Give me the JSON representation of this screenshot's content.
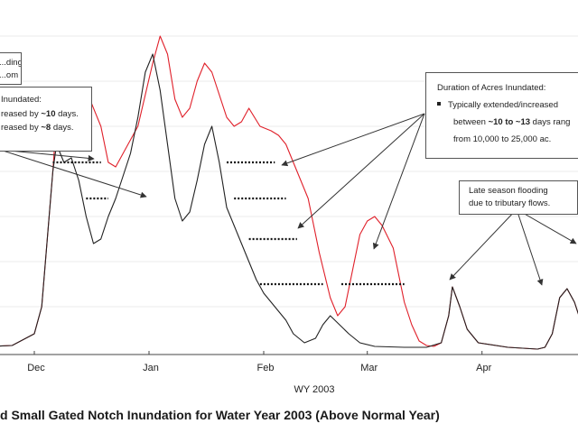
{
  "chart_data": {
    "type": "line",
    "xlabel": "WY 2003",
    "x_ticks": [
      "Dec",
      "Jan",
      "Feb",
      "Mar",
      "Apr"
    ],
    "caption": "d Small Gated Notch Inundation for Water Year 2003 (Above Normal Year)",
    "grid": true,
    "x_unit": "day index (Nov 1 = 0)",
    "series": [
      {
        "name": "",
        "color": "#e0202a",
        "points": [
          [
            0,
            0.05
          ],
          [
            12,
            0.05
          ],
          [
            24,
            0.07
          ],
          [
            30,
            0.2
          ],
          [
            32,
            0.5
          ],
          [
            35,
            2.0
          ],
          [
            36,
            2.6
          ],
          [
            40,
            2.75
          ],
          [
            44,
            2.9
          ],
          [
            48,
            2.5
          ],
          [
            50,
            2.1
          ],
          [
            52,
            2.05
          ],
          [
            54,
            2.2
          ],
          [
            58,
            2.5
          ],
          [
            62,
            3.2
          ],
          [
            64,
            3.5
          ],
          [
            66,
            3.3
          ],
          [
            68,
            2.8
          ],
          [
            70,
            2.6
          ],
          [
            72,
            2.7
          ],
          [
            74,
            3.0
          ],
          [
            76,
            3.2
          ],
          [
            78,
            3.1
          ],
          [
            82,
            2.6
          ],
          [
            84,
            2.5
          ],
          [
            86,
            2.55
          ],
          [
            88,
            2.7
          ],
          [
            91,
            2.5
          ],
          [
            94,
            2.45
          ],
          [
            96,
            2.4
          ],
          [
            98,
            2.3
          ],
          [
            100,
            2.1
          ],
          [
            104,
            1.7
          ],
          [
            107,
            1.1
          ],
          [
            110,
            0.6
          ],
          [
            112,
            0.4
          ],
          [
            114,
            0.5
          ],
          [
            116,
            0.9
          ],
          [
            118,
            1.3
          ],
          [
            120,
            1.45
          ],
          [
            122,
            1.5
          ],
          [
            124,
            1.4
          ],
          [
            127,
            1.15
          ],
          [
            130,
            0.55
          ],
          [
            132,
            0.3
          ],
          [
            134,
            0.12
          ],
          [
            136,
            0.07
          ],
          [
            138,
            0.06
          ],
          [
            140,
            0.1
          ],
          [
            142,
            0.4
          ],
          [
            143,
            0.72
          ],
          [
            145,
            0.5
          ],
          [
            147,
            0.25
          ],
          [
            150,
            0.1
          ],
          [
            158,
            0.05
          ],
          [
            162,
            0.04
          ],
          [
            166,
            0.03
          ],
          [
            168,
            0.05
          ],
          [
            170,
            0.2
          ],
          [
            172,
            0.6
          ],
          [
            174,
            0.7
          ],
          [
            176,
            0.55
          ],
          [
            178,
            0.3
          ],
          [
            180,
            0.5
          ],
          [
            182,
            0.8
          ]
        ]
      },
      {
        "name": "",
        "color": "#222222",
        "points": [
          [
            0,
            0.05
          ],
          [
            12,
            0.05
          ],
          [
            24,
            0.07
          ],
          [
            30,
            0.2
          ],
          [
            32,
            0.5
          ],
          [
            35,
            2.0
          ],
          [
            36,
            2.3
          ],
          [
            38,
            2.1
          ],
          [
            40,
            2.15
          ],
          [
            42,
            1.9
          ],
          [
            44,
            1.5
          ],
          [
            46,
            1.2
          ],
          [
            48,
            1.25
          ],
          [
            50,
            1.5
          ],
          [
            52,
            1.7
          ],
          [
            56,
            2.2
          ],
          [
            58,
            2.6
          ],
          [
            60,
            3.1
          ],
          [
            62,
            3.3
          ],
          [
            64,
            2.9
          ],
          [
            66,
            2.3
          ],
          [
            68,
            1.7
          ],
          [
            70,
            1.45
          ],
          [
            72,
            1.55
          ],
          [
            74,
            1.9
          ],
          [
            76,
            2.3
          ],
          [
            78,
            2.5
          ],
          [
            80,
            2.1
          ],
          [
            82,
            1.6
          ],
          [
            84,
            1.4
          ],
          [
            86,
            1.2
          ],
          [
            88,
            1.0
          ],
          [
            90,
            0.8
          ],
          [
            92,
            0.65
          ],
          [
            94,
            0.55
          ],
          [
            96,
            0.45
          ],
          [
            98,
            0.35
          ],
          [
            100,
            0.2
          ],
          [
            103,
            0.1
          ],
          [
            106,
            0.15
          ],
          [
            108,
            0.3
          ],
          [
            110,
            0.4
          ],
          [
            112,
            0.32
          ],
          [
            115,
            0.2
          ],
          [
            118,
            0.1
          ],
          [
            122,
            0.06
          ],
          [
            130,
            0.05
          ],
          [
            136,
            0.05
          ],
          [
            140,
            0.1
          ],
          [
            142,
            0.4
          ],
          [
            143,
            0.72
          ],
          [
            145,
            0.5
          ],
          [
            147,
            0.25
          ],
          [
            150,
            0.1
          ],
          [
            158,
            0.05
          ],
          [
            162,
            0.04
          ],
          [
            166,
            0.03
          ],
          [
            168,
            0.05
          ],
          [
            170,
            0.2
          ],
          [
            172,
            0.6
          ],
          [
            174,
            0.7
          ],
          [
            176,
            0.55
          ],
          [
            178,
            0.3
          ],
          [
            180,
            0.5
          ],
          [
            182,
            0.8
          ]
        ]
      }
    ],
    "duration_markers": [
      {
        "x1": 35,
        "x2": 48,
        "y": 2.1
      },
      {
        "x1": 44,
        "x2": 50,
        "y": 1.7
      },
      {
        "x1": 82,
        "x2": 95,
        "y": 2.1
      },
      {
        "x1": 84,
        "x2": 98,
        "y": 1.7
      },
      {
        "x1": 88,
        "x2": 101,
        "y": 1.25
      },
      {
        "x1": 91,
        "x2": 108,
        "y": 0.75
      },
      {
        "x1": 113,
        "x2": 130,
        "y": 0.75
      }
    ]
  },
  "annotations": {
    "top_left_box": [
      "...ding",
      "...om"
    ],
    "left_box": {
      "title": "Inundated:",
      "line1_prefix": "reased by ",
      "line1_bold": "~10",
      "line1_suffix": " days.",
      "line2_prefix": "reased by ",
      "line2_bold": "~8",
      "line2_suffix": " days."
    },
    "right_box": {
      "title": "Duration of Acres Inundated:",
      "line1": "Typically extended/increased",
      "line2_prefix": "between ",
      "line2_bold": "~10 to ~13",
      "line2_suffix": " days rang",
      "line3": "from 10,000 to 25,000 ac."
    },
    "late_box": {
      "line1": "Late season flooding",
      "line2": "due to tributary flows."
    }
  }
}
